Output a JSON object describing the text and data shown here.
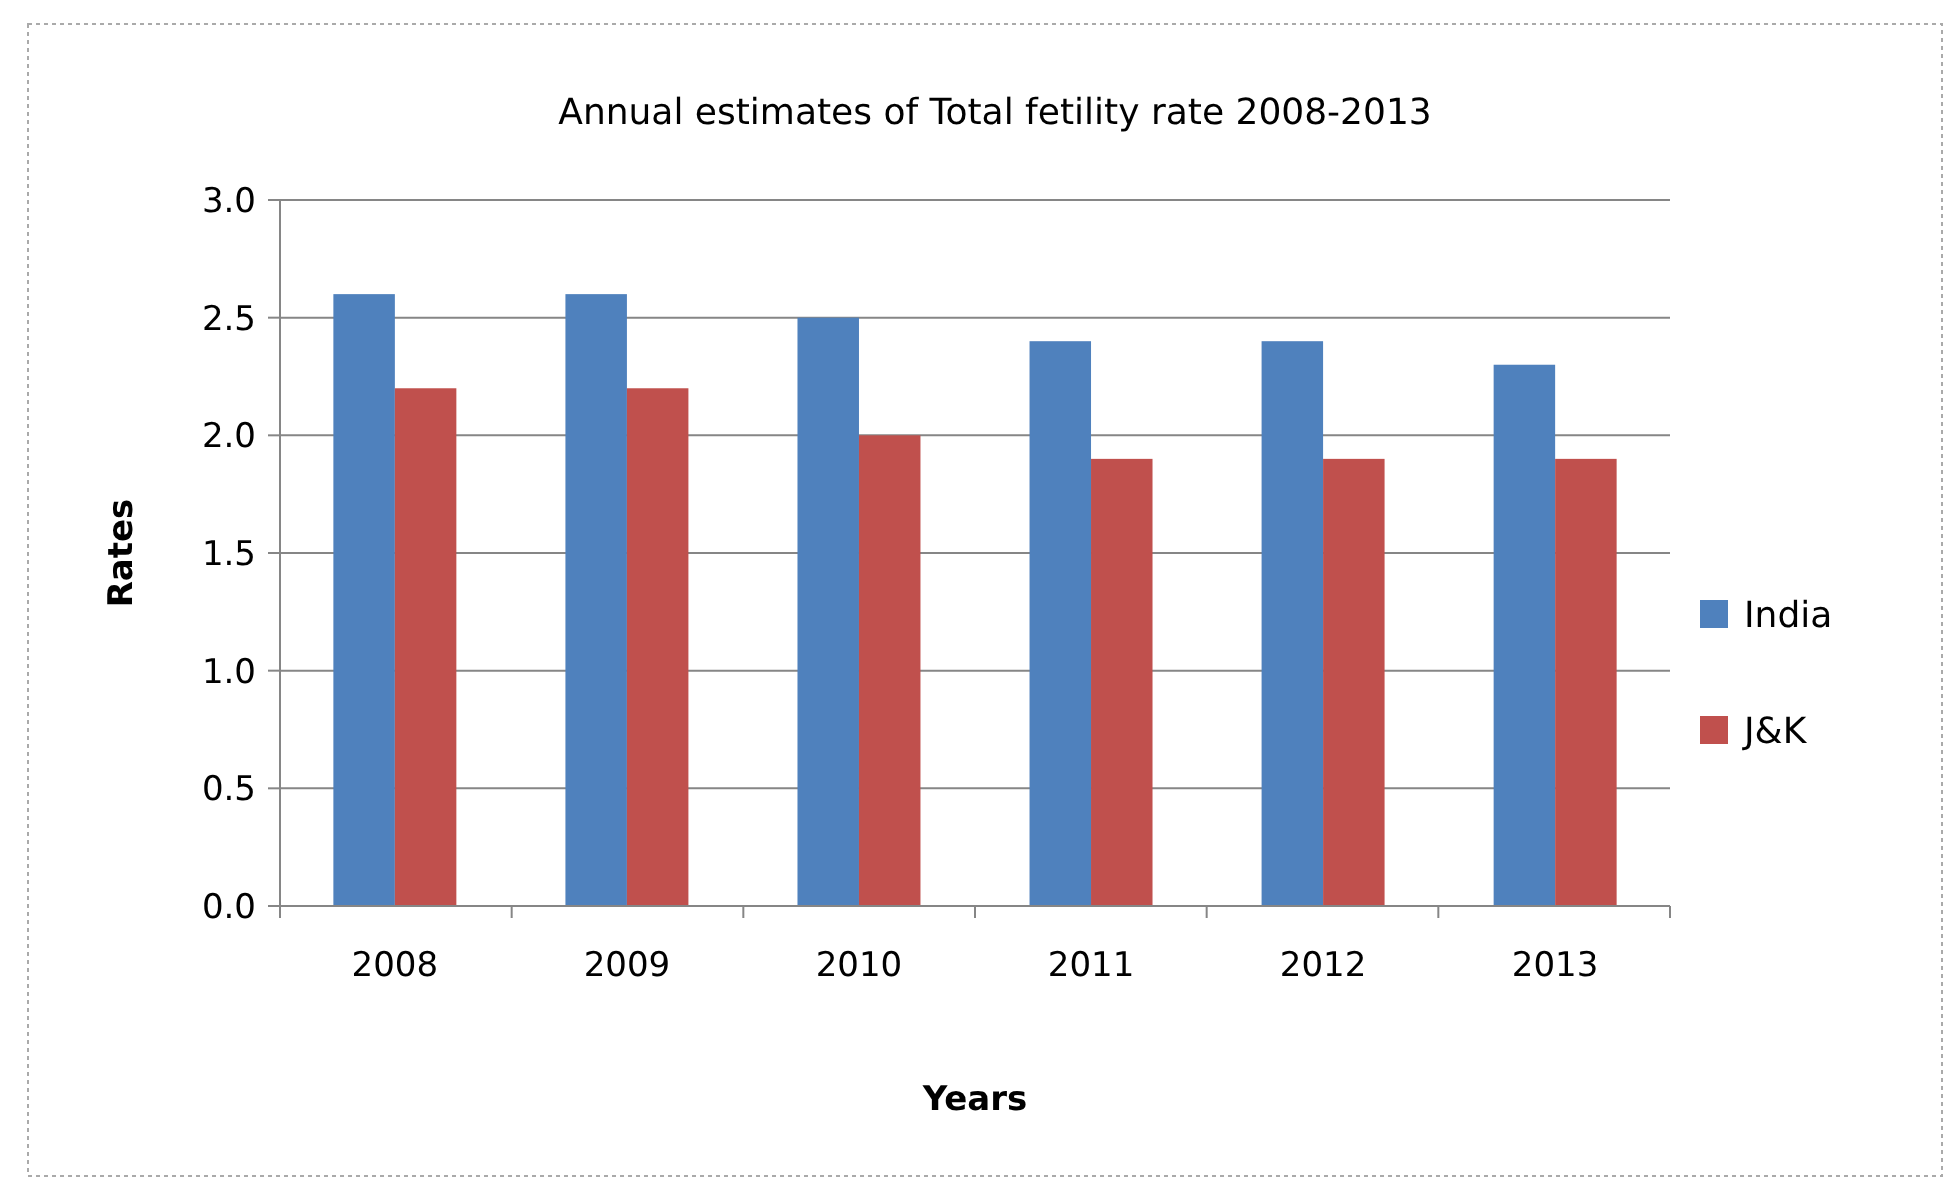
{
  "chart_data": {
    "type": "bar",
    "title": "Annual estimates  of Total fetility rate 2008-2013",
    "xlabel": "Years",
    "ylabel": "Rates",
    "categories": [
      "2008",
      "2009",
      "2010",
      "2011",
      "2012",
      "2013"
    ],
    "series": [
      {
        "name": "India",
        "color": "#4f81bd",
        "values": [
          2.6,
          2.6,
          2.5,
          2.4,
          2.4,
          2.3
        ]
      },
      {
        "name": "J&K",
        "color": "#c0504d",
        "values": [
          2.2,
          2.2,
          2.0,
          1.9,
          1.9,
          1.9
        ]
      }
    ],
    "ylim": [
      0,
      3
    ],
    "yticks": [
      {
        "value": 0,
        "label": "0.0"
      },
      {
        "value": 0.5,
        "label": "0.5"
      },
      {
        "value": 1,
        "label": "1.0"
      },
      {
        "value": 1.5,
        "label": "1.5"
      },
      {
        "value": 2,
        "label": "2.0"
      },
      {
        "value": 2.5,
        "label": "2.5"
      },
      {
        "value": 3,
        "label": "3.0"
      }
    ],
    "grid": "y",
    "legend": "right"
  }
}
